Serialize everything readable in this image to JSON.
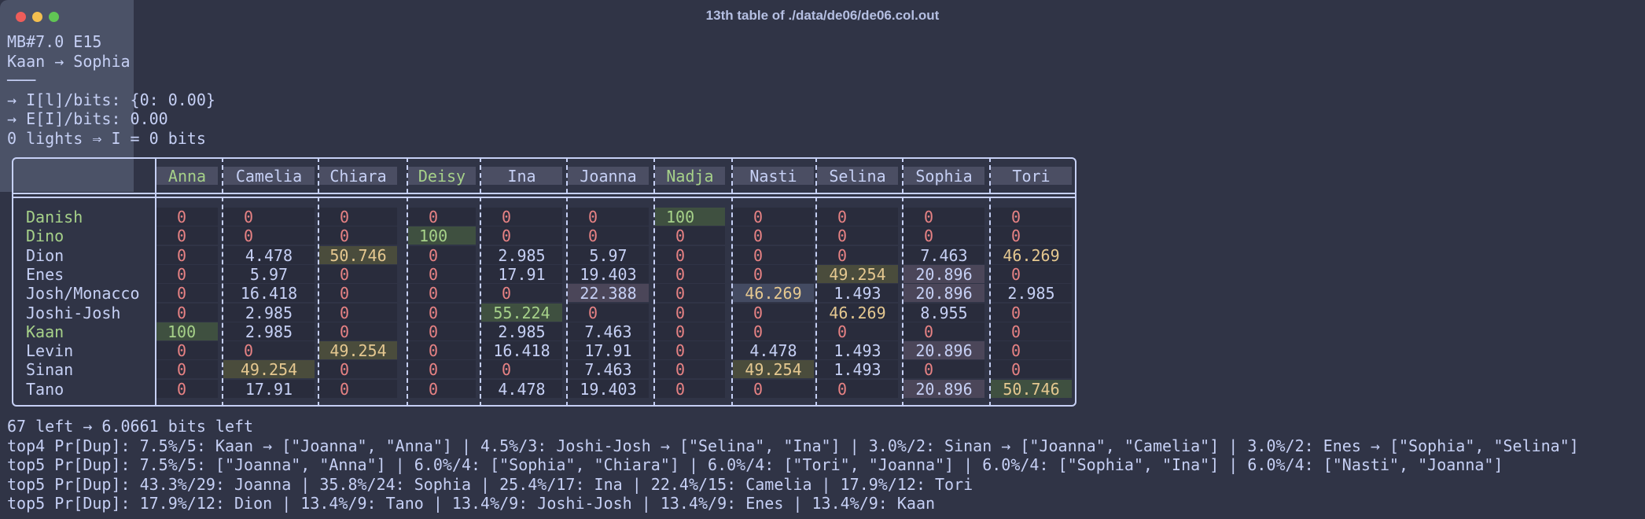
{
  "window": {
    "title": "13th table of ./data/de06/de06.col.out"
  },
  "header_lines": [
    "MB#7.0 E15",
    "Kaan → Sophia",
    "───",
    "→ I[l]/bits: {0: 0.00}",
    "→ E[I]/bits: 0.00",
    "0 lights ⇒ I = 0 bits"
  ],
  "table": {
    "columns": [
      "Anna",
      "Camelia",
      "Chiara",
      "Deisy",
      "Ina",
      "Joanna",
      "Nadja",
      "Nasti",
      "Selina",
      "Sophia",
      "Tori"
    ],
    "column_colors": [
      "green",
      "",
      "",
      "green",
      "",
      "",
      "green",
      "",
      "",
      "",
      ""
    ],
    "rows": [
      {
        "label": "Danish",
        "label_color": "green",
        "cells": [
          "0",
          "0",
          "0",
          "0",
          "0",
          "0",
          "100",
          "0",
          "0",
          "0",
          "0"
        ]
      },
      {
        "label": "Dino",
        "label_color": "green",
        "cells": [
          "0",
          "0",
          "0",
          "100",
          "0",
          "0",
          "0",
          "0",
          "0",
          "0",
          "0"
        ]
      },
      {
        "label": "Dion",
        "label_color": "",
        "cells": [
          "0",
          "4.478",
          "50.746",
          "0",
          "2.985",
          "5.97",
          "0",
          "0",
          "0",
          "7.463",
          "46.269"
        ]
      },
      {
        "label": "Enes",
        "label_color": "",
        "cells": [
          "0",
          "5.97",
          "0",
          "0",
          "17.91",
          "19.403",
          "0",
          "0",
          "49.254",
          "20.896",
          "0"
        ]
      },
      {
        "label": "Josh/Monacco",
        "label_color": "",
        "cells": [
          "0",
          "16.418",
          "0",
          "0",
          "0",
          "22.388",
          "0",
          "46.269",
          "1.493",
          "20.896",
          "2.985"
        ]
      },
      {
        "label": "Joshi-Josh",
        "label_color": "",
        "cells": [
          "0",
          "2.985",
          "0",
          "0",
          "55.224",
          "0",
          "0",
          "0",
          "46.269",
          "8.955",
          "0"
        ]
      },
      {
        "label": "Kaan",
        "label_color": "green",
        "cells": [
          "100",
          "2.985",
          "0",
          "0",
          "2.985",
          "7.463",
          "0",
          "0",
          "0",
          "0",
          "0"
        ]
      },
      {
        "label": "Levin",
        "label_color": "",
        "cells": [
          "0",
          "0",
          "49.254",
          "0",
          "16.418",
          "17.91",
          "0",
          "4.478",
          "1.493",
          "20.896",
          "0"
        ]
      },
      {
        "label": "Sinan",
        "label_color": "",
        "cells": [
          "0",
          "49.254",
          "0",
          "0",
          "0",
          "7.463",
          "0",
          "49.254",
          "1.493",
          "0",
          "0"
        ]
      },
      {
        "label": "Tano",
        "label_color": "",
        "cells": [
          "0",
          "17.91",
          "0",
          "0",
          "4.478",
          "19.403",
          "0",
          "0",
          "0",
          "20.896",
          "50.746"
        ]
      }
    ]
  },
  "footer_lines": [
    "67 left → 6.0661 bits left",
    "top4 Pr[Dup]: 7.5%/5: Kaan → [\"Joanna\", \"Anna\"] | 4.5%/3: Joshi-Josh → [\"Selina\", \"Ina\"] | 3.0%/2: Sinan → [\"Joanna\", \"Camelia\"] | 3.0%/2: Enes → [\"Sophia\", \"Selina\"]",
    "top5 Pr[Dup]: 7.5%/5: [\"Joanna\", \"Anna\"] | 6.0%/4: [\"Sophia\", \"Chiara\"] | 6.0%/4: [\"Tori\", \"Joanna\"] | 6.0%/4: [\"Sophia\", \"Ina\"] | 6.0%/4: [\"Nasti\", \"Joanna\"]",
    "top5 Pr[Dup]: 43.3%/29: Joanna | 35.8%/24: Sophia | 25.4%/17: Ina | 22.4%/15: Camelia | 17.9%/12: Tori",
    "top5 Pr[Dup]: 17.9%/12: Dion | 13.4%/9: Tano | 13.4%/9: Joshi-Josh | 13.4%/9: Enes | 13.4%/9: Kaan"
  ],
  "colors": {
    "background": "#303446",
    "text": "#c6d0f5",
    "zero_red": "#e78284",
    "highlight_green": "#a6d189",
    "highlight_yellow": "#e5c890"
  }
}
